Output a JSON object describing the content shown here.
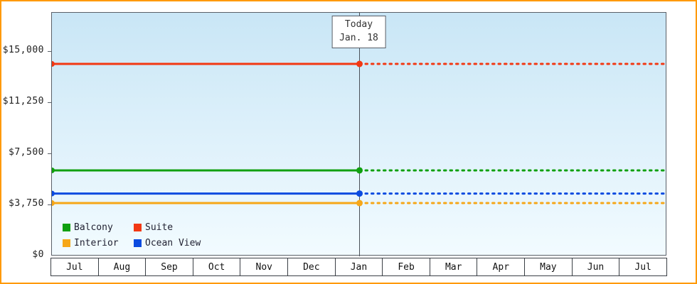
{
  "frame": {
    "border_color": "#ff9900",
    "background": "#ffffff"
  },
  "today_label": {
    "line1": "Today",
    "line2": "Jan. 18"
  },
  "chart_data": {
    "type": "line",
    "title": "",
    "xlabel": "",
    "ylabel": "",
    "x_months": [
      "Jul",
      "Aug",
      "Sep",
      "Oct",
      "Nov",
      "Dec",
      "Jan",
      "Feb",
      "Mar",
      "Apr",
      "May",
      "Jun",
      "Jul"
    ],
    "y_ticks": [
      {
        "label": "$0",
        "value": 0
      },
      {
        "label": "$3,750",
        "value": 3750
      },
      {
        "label": "$7,500",
        "value": 7500
      },
      {
        "label": "$11,250",
        "value": 11250
      },
      {
        "label": "$15,000",
        "value": 15000
      }
    ],
    "ylim": [
      0,
      17850
    ],
    "today": {
      "label": "Today",
      "date": "Jan. 18",
      "month_index": 6
    },
    "series": [
      {
        "name": "Suite",
        "color": "#f23813",
        "value": 14100,
        "solid_until_today": true,
        "dotted_after_today": true
      },
      {
        "name": "Balcony",
        "color": "#10a010",
        "value": 6300,
        "solid_until_today": true,
        "dotted_after_today": true
      },
      {
        "name": "Ocean View",
        "color": "#0b4be0",
        "value": 4600,
        "solid_until_today": true,
        "dotted_after_today": true
      },
      {
        "name": "Interior",
        "color": "#f6a718",
        "value": 3900,
        "solid_until_today": true,
        "dotted_after_today": true
      }
    ],
    "legend_order": [
      "Balcony",
      "Suite",
      "Interior",
      "Ocean View"
    ],
    "legend_position": "bottom-left",
    "grid": false,
    "plot_background_top": "#c9e6f6",
    "plot_background_bottom": "#f2fbff",
    "today_line_color": "#4a5058"
  }
}
